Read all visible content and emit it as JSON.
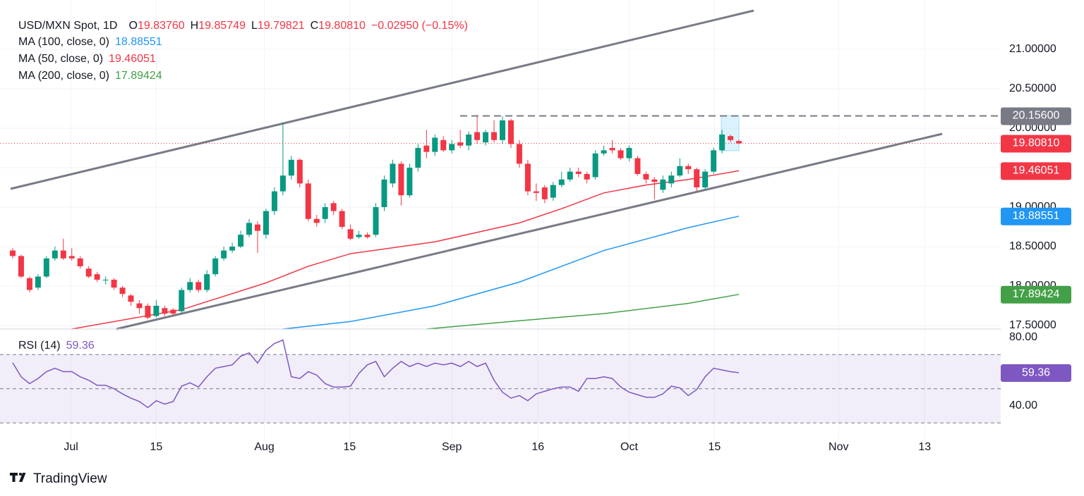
{
  "chart_data": {
    "type": "candlestick",
    "title": "USD/MXN Spot, 1D",
    "ohlc_header": [
      {
        "label": "O",
        "value": "19.83760"
      },
      {
        "label": "H",
        "value": "19.85749"
      },
      {
        "label": "L",
        "value": "19.79821"
      },
      {
        "label": "C",
        "value": "19.80810"
      }
    ],
    "change": "−0.02950 (−0.15%)",
    "xlim": [
      -0.5,
      117
    ],
    "xticks": [
      {
        "value": 6.9,
        "label": "Jul"
      },
      {
        "value": 17.0,
        "label": "15"
      },
      {
        "value": 29.8,
        "label": "Aug"
      },
      {
        "value": 39.9,
        "label": "15"
      },
      {
        "value": 52.0,
        "label": "Sep"
      },
      {
        "value": 62.2,
        "label": "16"
      },
      {
        "value": 73.0,
        "label": "Oct"
      },
      {
        "value": 83.1,
        "label": "15"
      },
      {
        "value": 97.8,
        "label": "Nov"
      },
      {
        "value": 108.0,
        "label": "13"
      }
    ],
    "ylim": [
      17.455,
      21.625
    ],
    "yticks": [
      {
        "value": 21,
        "label": "21.00000"
      },
      {
        "value": 20.5,
        "label": "20.50000"
      },
      {
        "value": 20,
        "label": "20.00000"
      },
      {
        "value": 19.5,
        "label": "19.50000"
      },
      {
        "value": 19,
        "label": "19.00000"
      },
      {
        "value": 18.5,
        "label": "18.50000"
      },
      {
        "value": 18,
        "label": "18.00000"
      },
      {
        "value": 17.5,
        "label": "17.50000"
      }
    ],
    "grid": true,
    "up_color": "#089981",
    "down_color": "#f23645",
    "open": [
      18.45,
      18.38,
      18.1,
      17.98,
      18.12,
      18.35,
      18.45,
      18.38,
      18.35,
      18.22,
      18.15,
      18.08,
      18.08,
      17.98,
      17.88,
      17.78,
      17.75,
      17.62,
      17.72,
      17.7,
      17.68,
      17.95,
      18.05,
      17.95,
      18.15,
      18.35,
      18.45,
      18.5,
      18.65,
      18.78,
      18.65,
      18.95,
      19.2,
      19.4,
      19.6,
      19.3,
      18.85,
      18.85,
      19.05,
      18.95,
      18.72,
      18.62,
      18.65,
      18.65,
      19.0,
      19.3,
      19.55,
      19.15,
      19.5,
      19.78,
      19.7,
      19.85,
      19.72,
      19.82,
      19.78,
      19.95,
      19.82,
      19.95,
      19.85,
      20.1,
      19.8,
      19.55,
      19.2,
      19.25,
      19.12,
      19.28,
      19.35,
      19.45,
      19.42,
      19.38,
      19.68,
      19.75,
      19.72,
      19.62,
      19.62,
      19.42,
      19.35,
      19.22,
      19.3,
      19.4,
      19.52,
      19.48,
      19.25,
      19.45,
      19.72,
      19.9,
      19.8376
    ],
    "high": [
      18.48,
      18.4,
      18.12,
      18.15,
      18.38,
      18.5,
      18.6,
      18.48,
      18.38,
      18.25,
      18.18,
      18.12,
      18.1,
      18.0,
      17.9,
      17.82,
      17.78,
      17.82,
      17.75,
      17.72,
      17.98,
      18.1,
      18.08,
      18.2,
      18.38,
      18.5,
      18.55,
      18.7,
      18.85,
      18.82,
      18.98,
      19.25,
      20.07,
      19.65,
      19.62,
      19.35,
      18.9,
      19.05,
      19.08,
      18.98,
      18.78,
      18.7,
      18.68,
      19.05,
      19.4,
      19.6,
      19.58,
      19.55,
      19.8,
      19.98,
      19.92,
      19.9,
      19.85,
      19.98,
      19.96,
      20.15,
      19.98,
      20.1,
      20.15,
      20.12,
      19.85,
      19.6,
      19.3,
      19.28,
      19.32,
      19.45,
      19.5,
      19.5,
      19.45,
      19.72,
      19.78,
      19.85,
      19.75,
      19.78,
      19.65,
      19.45,
      19.38,
      19.4,
      19.45,
      19.62,
      19.55,
      19.5,
      19.48,
      19.75,
      19.98,
      19.92,
      19.85749
    ],
    "low": [
      18.35,
      18.1,
      17.92,
      17.95,
      18.1,
      18.32,
      18.33,
      18.32,
      18.22,
      18.1,
      18.05,
      18.02,
      17.95,
      17.86,
      17.75,
      17.65,
      17.58,
      17.6,
      17.62,
      17.62,
      17.65,
      17.92,
      17.92,
      17.92,
      18.12,
      18.32,
      18.42,
      18.48,
      18.62,
      18.42,
      18.6,
      18.9,
      19.15,
      19.35,
      19.25,
      18.82,
      18.75,
      18.8,
      18.9,
      18.72,
      18.58,
      18.6,
      18.6,
      18.62,
      18.95,
      19.25,
      19.02,
      19.12,
      19.45,
      19.62,
      19.65,
      19.7,
      19.68,
      19.75,
      19.72,
      19.8,
      19.78,
      19.82,
      19.8,
      19.75,
      19.5,
      19.15,
      19.08,
      19.05,
      19.08,
      19.25,
      19.32,
      19.38,
      19.3,
      19.35,
      19.65,
      19.68,
      19.6,
      19.58,
      19.4,
      19.3,
      19.1,
      19.18,
      19.25,
      19.38,
      19.42,
      19.2,
      19.22,
      19.42,
      19.68,
      19.82,
      19.79821
    ],
    "close": [
      18.38,
      18.12,
      17.95,
      18.12,
      18.35,
      18.45,
      18.35,
      18.35,
      18.25,
      18.12,
      18.08,
      18.08,
      17.98,
      17.9,
      17.8,
      17.72,
      17.6,
      17.75,
      17.65,
      17.65,
      17.95,
      18.05,
      17.95,
      18.15,
      18.35,
      18.45,
      18.5,
      18.65,
      18.8,
      18.7,
      18.95,
      19.2,
      19.4,
      19.6,
      19.3,
      18.85,
      18.8,
      19.0,
      18.95,
      18.75,
      18.6,
      18.65,
      18.62,
      19.0,
      19.35,
      19.55,
      19.15,
      19.5,
      19.75,
      19.7,
      19.88,
      19.72,
      19.8,
      19.78,
      19.92,
      19.85,
      19.95,
      19.85,
      20.1,
      19.8,
      19.55,
      19.2,
      19.18,
      19.1,
      19.28,
      19.35,
      19.45,
      19.42,
      19.35,
      19.68,
      19.72,
      19.72,
      19.62,
      19.75,
      19.42,
      19.35,
      19.32,
      19.35,
      19.4,
      19.52,
      19.48,
      19.25,
      19.45,
      19.72,
      19.92,
      19.85,
      19.8081
    ],
    "close_label": "19.80810",
    "level": {
      "value": 20.156,
      "label": "20.15600"
    },
    "indicators": [
      {
        "name": "MA (100, close, 0)",
        "value_label": "18.88551",
        "color": "#2196f3",
        "x": [
          32,
          40,
          50,
          60,
          70,
          80,
          86
        ],
        "values": [
          17.455,
          17.55,
          17.75,
          18.05,
          18.45,
          18.74,
          18.88551
        ]
      },
      {
        "name": "MA (50, close, 0)",
        "value_label": "19.46051",
        "color": "#f23645",
        "x": [
          7,
          20,
          30,
          35,
          40,
          50,
          60,
          65,
          70,
          75,
          80,
          86
        ],
        "values": [
          17.455,
          17.7,
          18.04,
          18.25,
          18.41,
          18.56,
          18.8,
          18.98,
          19.18,
          19.28,
          19.35,
          19.46051
        ]
      },
      {
        "name": "MA (200, close, 0)",
        "value_label": "17.89424",
        "color": "#43a047",
        "x": [
          49,
          60,
          70,
          80,
          86
        ],
        "values": [
          17.455,
          17.56,
          17.65,
          17.78,
          17.89424
        ]
      }
    ],
    "rsi": {
      "name": "RSI (14)",
      "value_label": "59.36",
      "color": "#7e57c2",
      "ylim": [
        19.8,
        84.95
      ],
      "yticks": [
        {
          "value": 80,
          "label": "80.00"
        },
        {
          "value": 40,
          "label": "40.00"
        }
      ],
      "levels": [
        70,
        50,
        30
      ],
      "values": [
        65.2,
        57,
        53,
        56,
        60,
        62,
        60,
        60,
        57,
        55,
        52,
        52,
        50,
        47,
        44.5,
        42.5,
        39,
        43,
        41,
        42.5,
        51.5,
        53.5,
        51,
        57,
        62,
        63,
        64,
        69,
        71,
        65,
        72.5,
        76.5,
        78.5,
        57,
        56,
        60,
        58,
        53,
        51,
        51,
        51.5,
        59,
        64,
        66,
        57,
        62,
        66,
        63,
        65,
        63,
        65,
        64,
        65,
        63,
        66,
        63,
        65,
        55,
        48,
        44.5,
        46,
        43,
        47,
        48.5,
        50,
        51,
        51,
        48.5,
        56,
        56,
        57,
        56,
        51,
        48,
        46.5,
        45,
        45,
        47,
        51.5,
        50.5,
        46,
        49.5,
        57,
        62,
        61,
        60,
        59.36
      ]
    }
  },
  "brand": "TradingView"
}
